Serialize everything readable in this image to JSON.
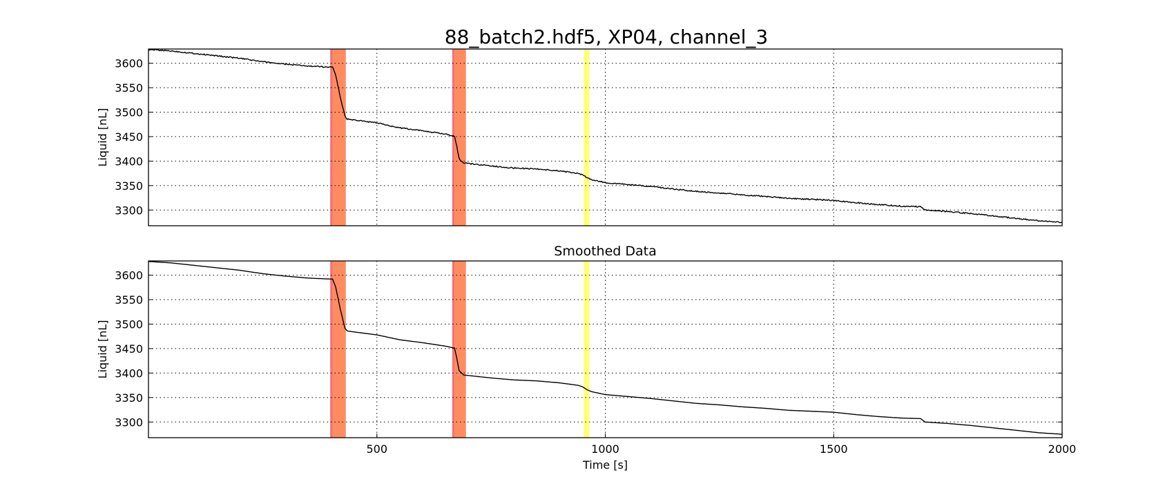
{
  "figure_title": "88_batch2.hdf5, XP04, channel_3",
  "chart_data": [
    {
      "type": "line",
      "title": "",
      "xlabel": "",
      "ylabel": "Liquid [nL]",
      "xlim": [
        0,
        2000
      ],
      "ylim": [
        3268,
        3629
      ],
      "xticks": [],
      "yticks": [
        3300,
        3350,
        3400,
        3450,
        3500,
        3550,
        3600
      ],
      "grid": true,
      "style": "raw-noisy",
      "x": [
        0,
        50,
        100,
        150,
        200,
        250,
        300,
        350,
        398,
        403,
        410,
        420,
        430,
        435,
        450,
        500,
        550,
        600,
        650,
        665,
        670,
        675,
        680,
        690,
        700,
        750,
        800,
        850,
        900,
        940,
        950,
        960,
        970,
        1000,
        1050,
        1100,
        1150,
        1200,
        1250,
        1300,
        1350,
        1400,
        1450,
        1500,
        1550,
        1600,
        1650,
        1690,
        1700,
        1750,
        1800,
        1850,
        1900,
        1950,
        2000
      ],
      "y": [
        3628,
        3625,
        3620,
        3615,
        3610,
        3603,
        3598,
        3594,
        3592,
        3592,
        3575,
        3530,
        3492,
        3486,
        3484,
        3478,
        3468,
        3462,
        3455,
        3452,
        3451,
        3430,
        3405,
        3396,
        3395,
        3390,
        3386,
        3384,
        3380,
        3375,
        3372,
        3366,
        3362,
        3356,
        3352,
        3348,
        3343,
        3338,
        3335,
        3331,
        3328,
        3324,
        3322,
        3320,
        3315,
        3311,
        3308,
        3307,
        3300,
        3297,
        3293,
        3288,
        3283,
        3278,
        3275
      ],
      "highlight_bands": [
        {
          "from": 398,
          "to": 432,
          "color": "#ff7f50"
        },
        {
          "from": 665,
          "to": 695,
          "color": "#ff7f50"
        },
        {
          "from": 953,
          "to": 965,
          "color": "#ffff66"
        }
      ]
    },
    {
      "type": "line",
      "title": "Smoothed Data",
      "xlabel": "Time [s]",
      "ylabel": "Liquid [nL]",
      "xlim": [
        0,
        2000
      ],
      "ylim": [
        3268,
        3629
      ],
      "xticks": [
        500,
        1000,
        1500,
        2000
      ],
      "yticks": [
        3300,
        3350,
        3400,
        3450,
        3500,
        3550,
        3600
      ],
      "grid": true,
      "style": "smooth",
      "x": [
        0,
        50,
        100,
        150,
        200,
        250,
        300,
        350,
        398,
        403,
        410,
        420,
        430,
        435,
        450,
        500,
        550,
        600,
        650,
        665,
        670,
        675,
        680,
        690,
        700,
        750,
        800,
        850,
        900,
        940,
        950,
        960,
        970,
        1000,
        1050,
        1100,
        1150,
        1200,
        1250,
        1300,
        1350,
        1400,
        1450,
        1500,
        1550,
        1600,
        1650,
        1690,
        1700,
        1750,
        1800,
        1850,
        1900,
        1950,
        2000
      ],
      "y": [
        3628,
        3625,
        3620,
        3615,
        3610,
        3603,
        3598,
        3594,
        3592,
        3592,
        3575,
        3530,
        3492,
        3486,
        3484,
        3478,
        3468,
        3462,
        3455,
        3452,
        3451,
        3430,
        3405,
        3396,
        3395,
        3390,
        3386,
        3384,
        3380,
        3375,
        3372,
        3366,
        3362,
        3356,
        3352,
        3348,
        3343,
        3338,
        3335,
        3331,
        3328,
        3324,
        3322,
        3320,
        3315,
        3311,
        3308,
        3307,
        3300,
        3297,
        3293,
        3288,
        3283,
        3278,
        3275
      ],
      "highlight_bands": [
        {
          "from": 398,
          "to": 432,
          "color": "#ff7f50"
        },
        {
          "from": 665,
          "to": 695,
          "color": "#ff7f50"
        },
        {
          "from": 953,
          "to": 965,
          "color": "#ffff66"
        }
      ]
    }
  ]
}
